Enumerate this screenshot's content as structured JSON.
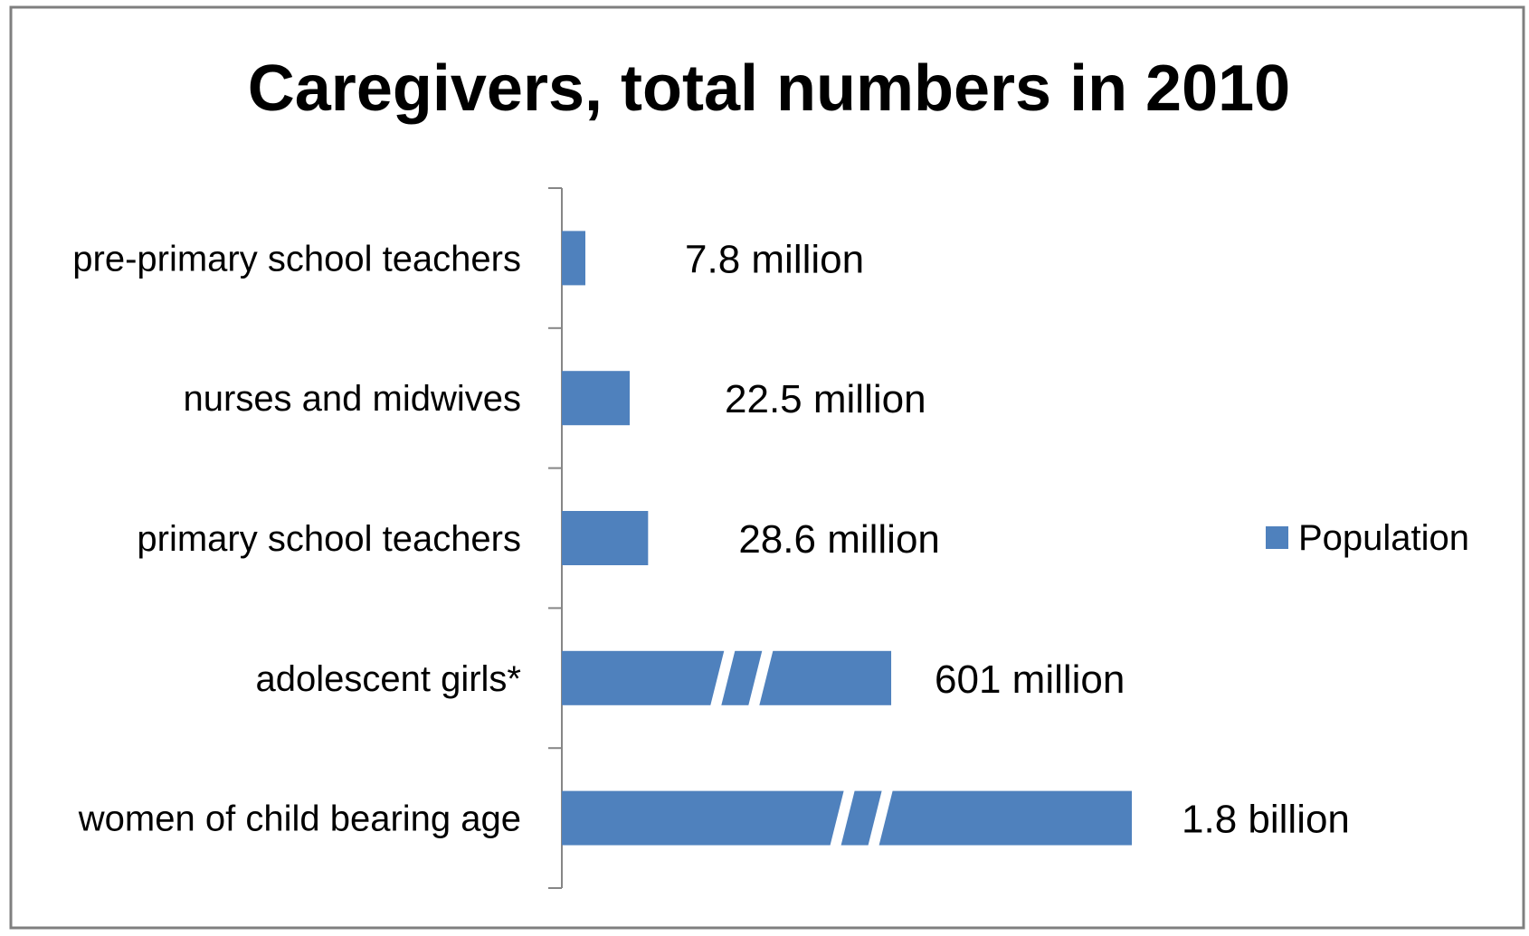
{
  "chart_data": {
    "type": "bar",
    "orientation": "horizontal",
    "title": "Caregivers, total numbers in 2010",
    "xlabel": "",
    "ylabel": "",
    "categories": [
      "pre-primary school teachers",
      "nurses and midwives",
      "primary school teachers",
      "adolescent girls*",
      "women of child bearing age"
    ],
    "series": [
      {
        "name": "Population",
        "values": [
          7.8,
          22.5,
          28.6,
          601,
          1800
        ],
        "unit": "million",
        "data_labels": [
          "7.8 million",
          "22.5 million",
          "28.6 million",
          "601 million",
          "1.8 billion"
        ],
        "axis_break": [
          false,
          false,
          false,
          true,
          true
        ]
      }
    ],
    "grid": false,
    "legend": "right",
    "colors": {
      "bar": "#4F81BD",
      "axis": "#868686",
      "frame": "#7F7F7F",
      "text": "#000000"
    }
  }
}
